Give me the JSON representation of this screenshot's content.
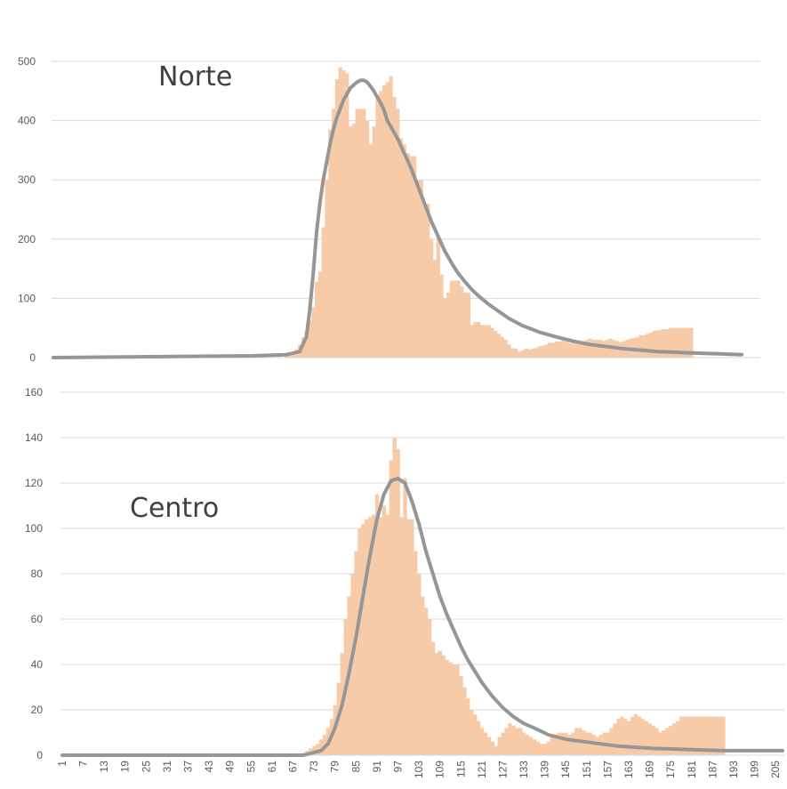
{
  "colors": {
    "bar": "#f8cba8",
    "curve": "#969696",
    "grid": "#d9d9d9",
    "text": "#595959",
    "title": "#404040"
  },
  "chart_data": [
    {
      "type": "bar",
      "title": "Norte",
      "xlabel": "",
      "ylabel": "",
      "x_range": [
        1,
        210
      ],
      "ylim": [
        0,
        500
      ],
      "y_ticks": [
        0,
        100,
        200,
        300,
        400,
        500
      ],
      "x_ticks": [],
      "grid": true,
      "bars": {
        "x": [
          70,
          71,
          72,
          73,
          74,
          75,
          76,
          77,
          78,
          79,
          80,
          81,
          82,
          83,
          84,
          85,
          86,
          87,
          88,
          89,
          90,
          91,
          92,
          93,
          94,
          95,
          96,
          97,
          98,
          99,
          100,
          101,
          102,
          103,
          104,
          105,
          106,
          107,
          108,
          109,
          110,
          111,
          112,
          113,
          114,
          115,
          116,
          117,
          118,
          119,
          120,
          121,
          122,
          123,
          124,
          125,
          126,
          127,
          128,
          129,
          130,
          131,
          132,
          133,
          134,
          135,
          136,
          137,
          138,
          139,
          140,
          141,
          142,
          143,
          144,
          145,
          146,
          147,
          148,
          149,
          150,
          151,
          152,
          153,
          154,
          155,
          156,
          157,
          158,
          159,
          160,
          161,
          162,
          163,
          164,
          165,
          166,
          167,
          168,
          169,
          170,
          171,
          172,
          173,
          174,
          175,
          176,
          177,
          178,
          179,
          180,
          181,
          182,
          183,
          184,
          185,
          186,
          187,
          188,
          189,
          190
        ],
        "values": [
          3,
          6,
          9,
          14,
          22,
          34,
          44,
          62,
          85,
          128,
          145,
          220,
          300,
          385,
          420,
          470,
          490,
          485,
          480,
          390,
          395,
          420,
          420,
          420,
          400,
          360,
          390,
          440,
          450,
          460,
          465,
          475,
          440,
          420,
          370,
          360,
          345,
          340,
          340,
          300,
          300,
          260,
          260,
          200,
          165,
          200,
          140,
          100,
          110,
          130,
          130,
          130,
          120,
          110,
          110,
          55,
          60,
          60,
          55,
          55,
          55,
          50,
          45,
          40,
          35,
          30,
          22,
          16,
          15,
          10,
          12,
          15,
          14,
          15,
          16,
          19,
          20,
          22,
          25,
          25,
          27,
          27,
          30,
          28,
          25,
          25,
          24,
          26,
          28,
          30,
          32,
          30,
          30,
          30,
          28,
          30,
          32,
          30,
          28,
          26,
          28,
          30,
          32,
          33,
          35,
          38,
          38,
          40,
          42,
          45,
          46,
          47,
          48,
          48,
          50,
          50,
          50,
          50,
          50,
          50,
          50
        ]
      },
      "curve": {
        "x": [
          1,
          60,
          70,
          74,
          76,
          77,
          78,
          79,
          80,
          81,
          82,
          83,
          84,
          85,
          86,
          87,
          88,
          89,
          90,
          91,
          92,
          93,
          94,
          95,
          96,
          97,
          98,
          99,
          100,
          101,
          103,
          105,
          107,
          109,
          111,
          113,
          115,
          117,
          119,
          121,
          123,
          125,
          127,
          130,
          133,
          136,
          140,
          145,
          150,
          155,
          160,
          170,
          180,
          190,
          200,
          205
        ],
        "y": [
          0,
          3,
          5,
          10,
          35,
          80,
          140,
          210,
          260,
          300,
          330,
          360,
          385,
          405,
          420,
          435,
          445,
          455,
          460,
          465,
          468,
          468,
          465,
          458,
          450,
          440,
          430,
          418,
          400,
          390,
          370,
          345,
          320,
          290,
          260,
          230,
          205,
          180,
          160,
          142,
          128,
          115,
          104,
          90,
          78,
          66,
          54,
          43,
          35,
          28,
          22,
          15,
          10,
          8,
          6,
          5
        ]
      }
    },
    {
      "type": "bar",
      "title": "Centro",
      "xlabel": "",
      "ylabel": "",
      "x_range": [
        1,
        207
      ],
      "ylim": [
        0,
        160
      ],
      "y_ticks": [
        0,
        20,
        40,
        60,
        80,
        100,
        120,
        140,
        160
      ],
      "x_ticks": [
        1,
        7,
        13,
        19,
        25,
        31,
        37,
        43,
        49,
        55,
        61,
        67,
        73,
        79,
        85,
        91,
        97,
        103,
        109,
        115,
        121,
        127,
        133,
        139,
        145,
        151,
        157,
        163,
        169,
        175,
        181,
        187,
        193,
        199,
        205
      ],
      "grid": true,
      "bars": {
        "x": [
          70,
          71,
          72,
          73,
          74,
          75,
          76,
          77,
          78,
          79,
          80,
          81,
          82,
          83,
          84,
          85,
          86,
          87,
          88,
          89,
          90,
          91,
          92,
          93,
          94,
          95,
          96,
          97,
          98,
          99,
          100,
          101,
          102,
          103,
          104,
          105,
          106,
          107,
          108,
          109,
          110,
          111,
          112,
          113,
          114,
          115,
          116,
          117,
          118,
          119,
          120,
          121,
          122,
          123,
          124,
          125,
          126,
          127,
          128,
          129,
          130,
          131,
          132,
          133,
          134,
          135,
          136,
          137,
          138,
          139,
          140,
          141,
          142,
          143,
          144,
          145,
          146,
          147,
          148,
          149,
          150,
          151,
          152,
          153,
          154,
          155,
          156,
          157,
          158,
          159,
          160,
          161,
          162,
          163,
          164,
          165,
          166,
          167,
          168,
          169,
          170,
          171,
          172,
          173,
          174,
          175,
          176,
          177,
          178,
          179,
          180,
          181,
          182,
          183,
          184,
          185,
          186,
          187,
          188,
          189,
          190
        ],
        "values": [
          1,
          2,
          3,
          4,
          5,
          7,
          9,
          12,
          16,
          22,
          32,
          45,
          60,
          70,
          80,
          90,
          100,
          102,
          104,
          105,
          106,
          115,
          105,
          110,
          106,
          130,
          140,
          135,
          105,
          122,
          104,
          104,
          90,
          80,
          70,
          65,
          60,
          50,
          45,
          46,
          44,
          42,
          41,
          40,
          40,
          35,
          30,
          25,
          20,
          18,
          15,
          12,
          10,
          8,
          6,
          4,
          8,
          10,
          12,
          14,
          13,
          12,
          12,
          10,
          9,
          8,
          7,
          6,
          5,
          5,
          6,
          8,
          9,
          10,
          10,
          10,
          9,
          10,
          12,
          12,
          11,
          10,
          10,
          9,
          8,
          9,
          10,
          10,
          12,
          14,
          16,
          17,
          16,
          15,
          17,
          18,
          17,
          16,
          15,
          14,
          13,
          12,
          10,
          11,
          12,
          13,
          14,
          15,
          17,
          17,
          17,
          17,
          17,
          17,
          17,
          17,
          17,
          17,
          17,
          17,
          17
        ]
      },
      "curve": {
        "x": [
          1,
          70,
          75,
          77,
          79,
          81,
          83,
          85,
          87,
          89,
          91,
          93,
          95,
          97,
          99,
          101,
          103,
          105,
          107,
          109,
          111,
          113,
          115,
          117,
          119,
          121,
          124,
          127,
          130,
          133,
          136,
          140,
          145,
          150,
          155,
          160,
          165,
          170,
          180,
          190,
          200,
          207
        ],
        "y": [
          0,
          0,
          2,
          5,
          12,
          22,
          36,
          52,
          70,
          88,
          104,
          115,
          121,
          122,
          120,
          112,
          102,
          90,
          80,
          70,
          62,
          55,
          48,
          42,
          37,
          32,
          26,
          21,
          17,
          14,
          12,
          9,
          7,
          6,
          5,
          4,
          3.5,
          3,
          2.5,
          2,
          2,
          2
        ]
      }
    }
  ]
}
